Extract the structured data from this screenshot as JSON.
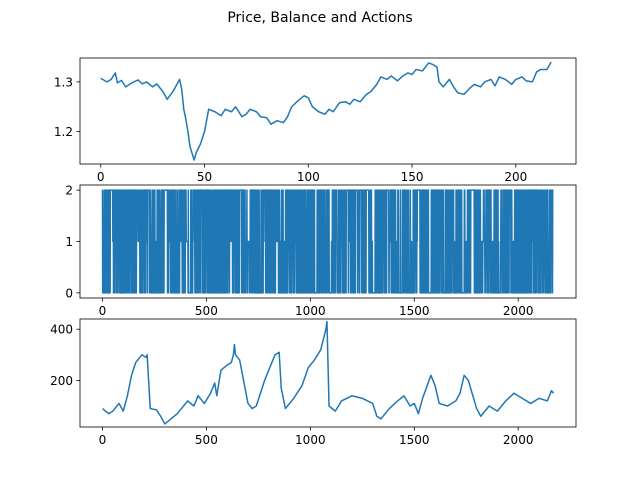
{
  "title": "Price, Balance and Actions",
  "colors": {
    "series": "#1f77b4",
    "axes": "#000000",
    "background": "#ffffff"
  },
  "chart_data": [
    {
      "type": "line",
      "xlim": [
        -10,
        229
      ],
      "ylim": [
        1.135,
        1.348
      ],
      "xticks": [
        0,
        50,
        100,
        150,
        200
      ],
      "yticks": [
        1.2,
        1.3
      ],
      "xtick_labels": [
        "0",
        "50",
        "100",
        "150",
        "200"
      ],
      "ytick_labels": [
        "1.2",
        "1.3"
      ],
      "grid": false,
      "series": [
        {
          "x": [
            0,
            3,
            5,
            7,
            8,
            10,
            12,
            15,
            18,
            20,
            22,
            25,
            27,
            30,
            32,
            35,
            38,
            39,
            40,
            41,
            42,
            43,
            45,
            46,
            48,
            50,
            52,
            55,
            58,
            60,
            63,
            65,
            68,
            70,
            72,
            75,
            77,
            80,
            82,
            85,
            88,
            90,
            92,
            95,
            98,
            100,
            102,
            105,
            108,
            110,
            112,
            115,
            118,
            120,
            122,
            125,
            128,
            130,
            133,
            135,
            138,
            140,
            143,
            145,
            148,
            150,
            152,
            155,
            158,
            160,
            162,
            163,
            165,
            168,
            170,
            172,
            175,
            178,
            180,
            183,
            185,
            188,
            190,
            192,
            195,
            198,
            200,
            203,
            205,
            208,
            210,
            212,
            215,
            217
          ],
          "y": [
            1.307,
            1.3,
            1.305,
            1.318,
            1.298,
            1.303,
            1.29,
            1.298,
            1.304,
            1.296,
            1.3,
            1.29,
            1.296,
            1.28,
            1.265,
            1.282,
            1.305,
            1.285,
            1.245,
            1.225,
            1.2,
            1.17,
            1.143,
            1.158,
            1.175,
            1.2,
            1.245,
            1.24,
            1.232,
            1.245,
            1.24,
            1.25,
            1.23,
            1.235,
            1.245,
            1.24,
            1.23,
            1.228,
            1.215,
            1.222,
            1.218,
            1.23,
            1.25,
            1.262,
            1.272,
            1.268,
            1.25,
            1.24,
            1.235,
            1.245,
            1.24,
            1.258,
            1.26,
            1.255,
            1.265,
            1.26,
            1.275,
            1.28,
            1.295,
            1.31,
            1.305,
            1.312,
            1.302,
            1.31,
            1.318,
            1.315,
            1.325,
            1.322,
            1.338,
            1.335,
            1.33,
            1.3,
            1.29,
            1.305,
            1.29,
            1.278,
            1.275,
            1.288,
            1.295,
            1.29,
            1.3,
            1.305,
            1.292,
            1.31,
            1.305,
            1.295,
            1.305,
            1.31,
            1.302,
            1.3,
            1.32,
            1.325,
            1.325,
            1.34
          ]
        }
      ]
    },
    {
      "type": "line",
      "xlim": [
        -108,
        2278
      ],
      "ylim": [
        -0.1,
        2.1
      ],
      "xticks": [
        0,
        500,
        1000,
        1500,
        2000
      ],
      "yticks": [
        0,
        1,
        2
      ],
      "xtick_labels": [
        "0",
        "500",
        "1000",
        "1500",
        "2000"
      ],
      "ytick_labels": [
        "0",
        "1",
        "2"
      ],
      "grid": false,
      "series": [
        {
          "name": "",
          "length": 2170,
          "seed": 17,
          "value_set": [
            0,
            1,
            2
          ]
        }
      ]
    },
    {
      "type": "line",
      "xlim": [
        -108,
        2278
      ],
      "ylim": [
        18,
        440
      ],
      "xticks": [
        0,
        500,
        1000,
        1500,
        2000
      ],
      "yticks": [
        200,
        400
      ],
      "xtick_labels": [
        "0",
        "500",
        "1000",
        "1500",
        "2000"
      ],
      "ytick_labels": [
        "200",
        "400"
      ],
      "grid": false,
      "series": [
        {
          "x": [
            0,
            30,
            50,
            80,
            100,
            120,
            140,
            160,
            190,
            210,
            215,
            230,
            260,
            280,
            300,
            330,
            360,
            380,
            390,
            410,
            440,
            460,
            490,
            520,
            540,
            550,
            570,
            600,
            620,
            630,
            635,
            640,
            660,
            700,
            720,
            740,
            760,
            780,
            800,
            830,
            850,
            860,
            870,
            880,
            920,
            960,
            990,
            1020,
            1050,
            1075,
            1080,
            1090,
            1120,
            1150,
            1200,
            1250,
            1300,
            1320,
            1340,
            1380,
            1420,
            1450,
            1480,
            1500,
            1520,
            1540,
            1580,
            1600,
            1620,
            1660,
            1700,
            1720,
            1740,
            1760,
            1800,
            1820,
            1860,
            1900,
            1940,
            1980,
            2020,
            2060,
            2100,
            2140,
            2160,
            2170
          ],
          "y": [
            90,
            70,
            80,
            110,
            80,
            140,
            220,
            270,
            300,
            290,
            300,
            90,
            85,
            60,
            30,
            50,
            70,
            90,
            100,
            120,
            100,
            140,
            110,
            150,
            190,
            140,
            240,
            260,
            270,
            300,
            340,
            300,
            280,
            110,
            90,
            100,
            150,
            200,
            240,
            300,
            310,
            170,
            130,
            90,
            130,
            180,
            250,
            280,
            320,
            400,
            430,
            100,
            80,
            120,
            140,
            130,
            110,
            60,
            50,
            90,
            120,
            140,
            100,
            110,
            70,
            130,
            220,
            180,
            110,
            100,
            120,
            150,
            220,
            200,
            90,
            60,
            100,
            80,
            120,
            150,
            130,
            110,
            130,
            120,
            160,
            150
          ]
        }
      ]
    }
  ]
}
